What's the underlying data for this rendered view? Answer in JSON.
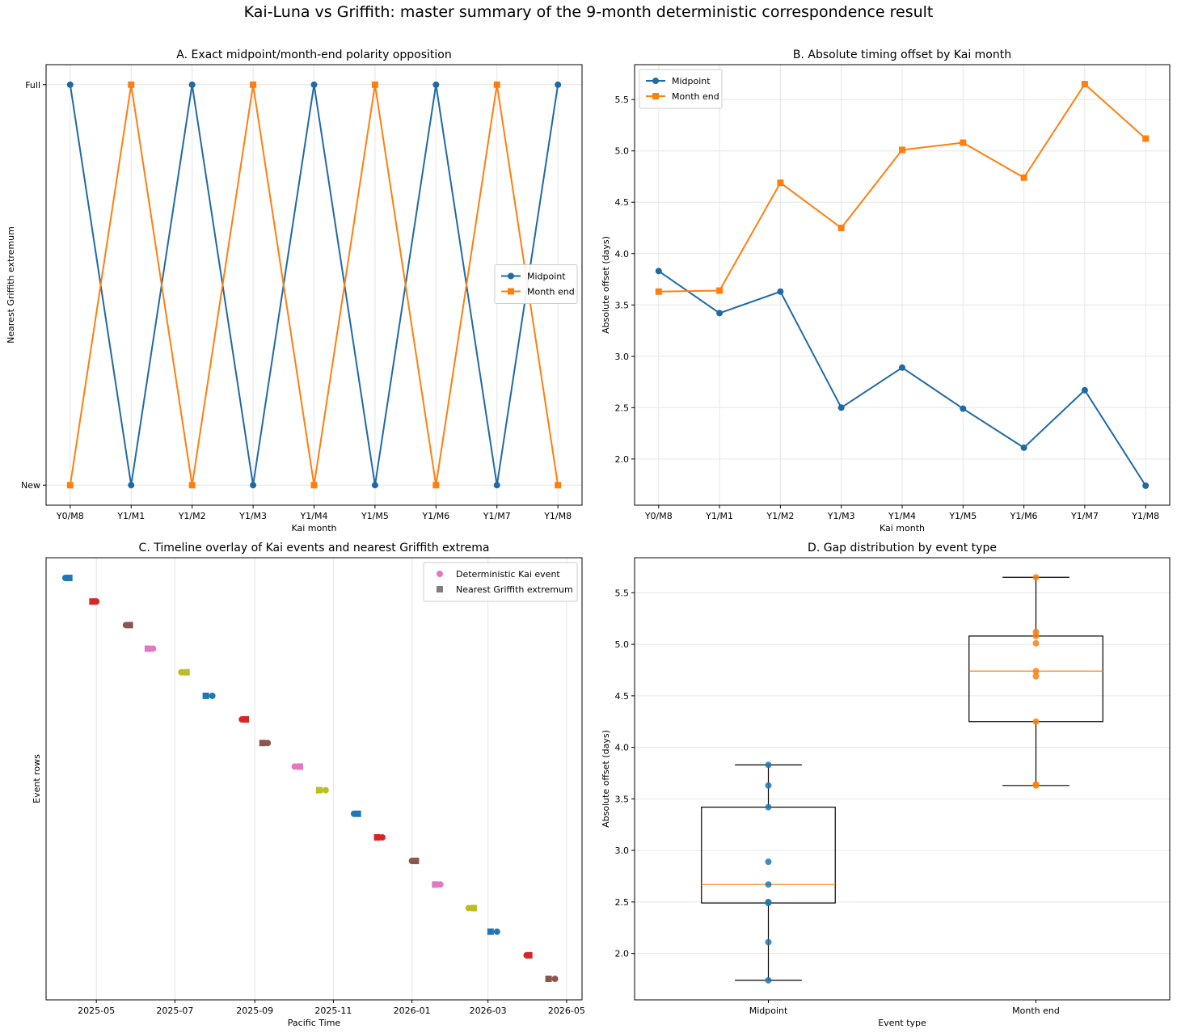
{
  "figure": {
    "title": "Kai-Luna vs Griffith: master summary of the 9-month deterministic correspondence result"
  },
  "colors": {
    "blue": "#1f6aa5",
    "orange": "#ff7f0e",
    "grid": "#e6e6e6"
  },
  "chart_data": [
    {
      "id": "A",
      "type": "line",
      "title": "A. Exact midpoint/month-end polarity opposition",
      "xlabel": "Kai month",
      "ylabel": "Nearest Griffith extremum",
      "categories": [
        "Y0/M8",
        "Y1/M1",
        "Y1/M2",
        "Y1/M3",
        "Y1/M4",
        "Y1/M5",
        "Y1/M6",
        "Y1/M7",
        "Y1/M8"
      ],
      "y_ticks": [
        {
          "value": 0,
          "label": "New"
        },
        {
          "value": 1,
          "label": "Full"
        }
      ],
      "ylim": [
        -0.05,
        1.05
      ],
      "legend_position": "center-right",
      "series": [
        {
          "name": "Midpoint",
          "marker": "circle",
          "color": "#1f6aa5",
          "values": [
            1,
            0,
            1,
            0,
            1,
            0,
            1,
            0,
            1
          ]
        },
        {
          "name": "Month end",
          "marker": "square",
          "color": "#ff7f0e",
          "values": [
            0,
            1,
            0,
            1,
            0,
            1,
            0,
            1,
            0
          ]
        }
      ]
    },
    {
      "id": "B",
      "type": "line",
      "title": "B. Absolute timing offset by Kai month",
      "xlabel": "Kai month",
      "ylabel": "Absolute offset (days)",
      "categories": [
        "Y0/M8",
        "Y1/M1",
        "Y1/M2",
        "Y1/M3",
        "Y1/M4",
        "Y1/M5",
        "Y1/M6",
        "Y1/M7",
        "Y1/M8"
      ],
      "y_ticks": [
        2.0,
        2.5,
        3.0,
        3.5,
        4.0,
        4.5,
        5.0,
        5.5
      ],
      "y_tick_labels": [
        "2.0",
        "2.5",
        "3.0",
        "3.5",
        "4.0",
        "4.5",
        "5.0",
        "5.5"
      ],
      "ylim": [
        1.55,
        5.84
      ],
      "legend_position": "top-left",
      "series": [
        {
          "name": "Midpoint",
          "marker": "circle",
          "color": "#1f6aa5",
          "values": [
            3.83,
            3.42,
            3.63,
            2.5,
            2.89,
            2.49,
            2.11,
            2.67,
            1.74
          ]
        },
        {
          "name": "Month end",
          "marker": "square",
          "color": "#ff7f0e",
          "values": [
            3.63,
            3.64,
            4.69,
            4.25,
            5.01,
            5.08,
            4.74,
            5.65,
            5.12
          ]
        }
      ]
    },
    {
      "id": "C",
      "type": "scatter",
      "title": "C. Timeline overlay of Kai events and nearest Griffith extrema",
      "xlabel": "Pacific Time",
      "ylabel": "Event rows",
      "x_ticks": [
        "2025-05",
        "2025-07",
        "2025-09",
        "2025-11",
        "2026-01",
        "2026-03",
        "2026-05"
      ],
      "xlim": [
        "2025-03-23",
        "2026-05-13"
      ],
      "legend_position": "top-right",
      "legend": [
        {
          "label": "Deterministic Kai event",
          "marker": "circle",
          "color": "#e377c2"
        },
        {
          "label": "Nearest Griffith extremum",
          "marker": "square",
          "color": "#7f7f7f"
        }
      ],
      "rows": [
        {
          "kai": "2025-04-07",
          "griffith": "2025-04-10",
          "color": "#1f77b4"
        },
        {
          "kai": "2025-05-01",
          "griffith": "2025-04-28",
          "color": "#d62728"
        },
        {
          "kai": "2025-05-24",
          "griffith": "2025-05-27",
          "color": "#8c564b"
        },
        {
          "kai": "2025-06-14",
          "griffith": "2025-06-10",
          "color": "#e377c2"
        },
        {
          "kai": "2025-07-06",
          "griffith": "2025-07-10",
          "color": "#bcbd22"
        },
        {
          "kai": "2025-07-30",
          "griffith": "2025-07-25",
          "color": "#1f77b4"
        },
        {
          "kai": "2025-08-22",
          "griffith": "2025-08-25",
          "color": "#d62728"
        },
        {
          "kai": "2025-09-11",
          "griffith": "2025-09-07",
          "color": "#8c564b"
        },
        {
          "kai": "2025-10-02",
          "griffith": "2025-10-06",
          "color": "#e377c2"
        },
        {
          "kai": "2025-10-26",
          "griffith": "2025-10-21",
          "color": "#bcbd22"
        },
        {
          "kai": "2025-11-17",
          "griffith": "2025-11-20",
          "color": "#1f77b4"
        },
        {
          "kai": "2025-12-09",
          "griffith": "2025-12-05",
          "color": "#d62728"
        },
        {
          "kai": "2026-01-01",
          "griffith": "2026-01-04",
          "color": "#8c564b"
        },
        {
          "kai": "2026-01-23",
          "griffith": "2026-01-19",
          "color": "#e377c2"
        },
        {
          "kai": "2026-02-14",
          "griffith": "2026-02-18",
          "color": "#bcbd22"
        },
        {
          "kai": "2026-03-08",
          "griffith": "2026-03-03",
          "color": "#1f77b4"
        },
        {
          "kai": "2026-03-31",
          "griffith": "2026-04-02",
          "color": "#d62728"
        },
        {
          "kai": "2026-04-22",
          "griffith": "2026-04-17",
          "color": "#8c564b"
        }
      ]
    },
    {
      "id": "D",
      "type": "box",
      "title": "D. Gap distribution by event type",
      "xlabel": "Event type",
      "ylabel": "Absolute offset (days)",
      "categories": [
        "Midpoint",
        "Month end"
      ],
      "y_ticks": [
        2.0,
        2.5,
        3.0,
        3.5,
        4.0,
        4.5,
        5.0,
        5.5
      ],
      "y_tick_labels": [
        "2.0",
        "2.5",
        "3.0",
        "3.5",
        "4.0",
        "4.5",
        "5.0",
        "5.5"
      ],
      "ylim": [
        1.55,
        5.84
      ],
      "groups": [
        {
          "name": "Midpoint",
          "color": "#1f77b4",
          "values": [
            3.83,
            3.42,
            3.63,
            2.5,
            2.89,
            2.49,
            2.11,
            2.67,
            1.74
          ],
          "q1": 2.49,
          "median": 2.67,
          "q3": 3.42,
          "whisker_low": 1.74,
          "whisker_high": 3.83
        },
        {
          "name": "Month end",
          "color": "#ff7f0e",
          "values": [
            3.63,
            3.64,
            4.69,
            4.25,
            5.01,
            5.08,
            4.74,
            5.65,
            5.12
          ],
          "q1": 4.25,
          "median": 4.74,
          "q3": 5.08,
          "whisker_low": 3.63,
          "whisker_high": 5.65
        }
      ]
    }
  ]
}
